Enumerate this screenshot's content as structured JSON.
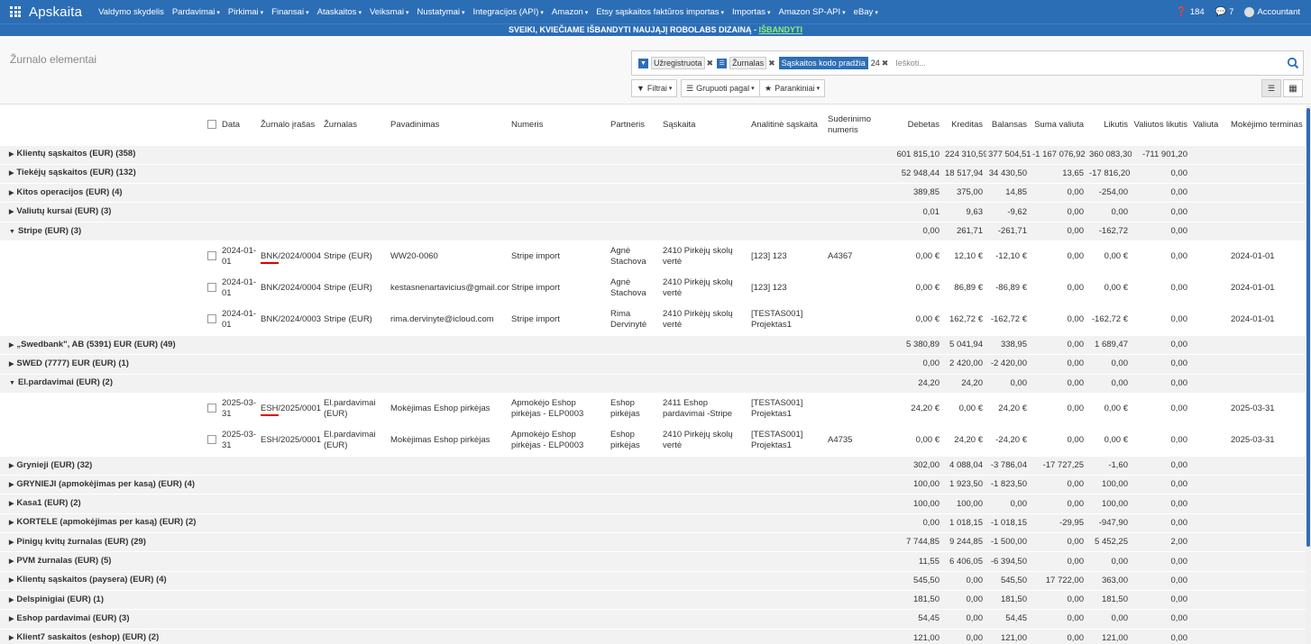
{
  "navbar": {
    "brand": "Apskaita",
    "menu": [
      "Valdymo skydelis",
      "Pardavimai",
      "Pirkimai",
      "Finansai",
      "Ataskaitos",
      "Veiksmai",
      "Nustatymai",
      "Integracijos (API)",
      "Amazon",
      "Etsy sąskaitos faktūros importas",
      "Importas",
      "Amazon SP-API",
      "eBay"
    ],
    "menu_has_caret": [
      false,
      true,
      true,
      true,
      true,
      true,
      true,
      true,
      true,
      true,
      true,
      true,
      true
    ],
    "help_count": "184",
    "messages_count": "7",
    "user": "Accountant"
  },
  "banner": {
    "text": "SVEIKI, KVIEČIAME IŠBANDYTI NAUJĄJĮ ROBOLABS DIZAINĄ - ",
    "link": "IŠBANDYTI"
  },
  "control": {
    "title": "Žurnalo elementai",
    "facets": [
      {
        "icon": "filter-icon",
        "value": "Užregistruota",
        "highlight": false,
        "extra": ""
      },
      {
        "icon": "list-icon",
        "value": "Žurnalas",
        "highlight": false,
        "extra": ""
      },
      {
        "icon": "",
        "value": "Sąskaitos kodo pradžia",
        "highlight": true,
        "extra": "24"
      }
    ],
    "search_placeholder": "Ieškoti...",
    "filters_label": "Filtrai",
    "group_label": "Grupuoti pagal",
    "favorites_label": "Parankiniai"
  },
  "table": {
    "headers": [
      "Data",
      "Žurnalo įrašas",
      "Žurnalas",
      "Pavadinimas",
      "Numeris",
      "Partneris",
      "Sąskaita",
      "Analitinė sąskaita",
      "Suderinimo numeris",
      "Debetas",
      "Kreditas",
      "Balansas",
      "Suma valiuta",
      "Likutis",
      "Valiutos likutis",
      "Valiuta",
      "Mokėjimo terminas"
    ],
    "rows": [
      {
        "type": "group",
        "open": false,
        "name": "Klientų sąskaitos (EUR) (358)",
        "debit": "601 815,10",
        "credit": "224 310,59",
        "balance": "377 504,51",
        "amount_cur": "-1 167 076,92",
        "residual": "360 083,30",
        "cur_residual": "-711 901,20"
      },
      {
        "type": "group",
        "open": false,
        "name": "Tiekėjų sąskaitos (EUR) (132)",
        "debit": "52 948,44",
        "credit": "18 517,94",
        "balance": "34 430,50",
        "amount_cur": "13,65",
        "residual": "-17 816,20",
        "cur_residual": "0,00"
      },
      {
        "type": "group",
        "open": false,
        "name": "Kitos operacijos (EUR) (4)",
        "debit": "389,85",
        "credit": "375,00",
        "balance": "14,85",
        "amount_cur": "0,00",
        "residual": "-254,00",
        "cur_residual": "0,00"
      },
      {
        "type": "group",
        "open": false,
        "name": "Valiutų kursai (EUR) (3)",
        "debit": "0,01",
        "credit": "9,63",
        "balance": "-9,62",
        "amount_cur": "0,00",
        "residual": "0,00",
        "cur_residual": "0,00"
      },
      {
        "type": "group",
        "open": true,
        "name": "Stripe (EUR) (3)",
        "debit": "0,00",
        "credit": "261,71",
        "balance": "-261,71",
        "amount_cur": "0,00",
        "residual": "-162,72",
        "cur_residual": "0,00"
      },
      {
        "type": "rec",
        "date": "2024-01-01",
        "entry": "BNK/2024/0004",
        "entry_underline": true,
        "journal": "Stripe (EUR)",
        "label": "WW20-0060",
        "ref": "Stripe import",
        "partner": "Agnė Stachova",
        "account": "2410 Pirkėjų skolų vertė",
        "analytic": "[123] 123",
        "reconcile": "A4367",
        "debit": "0,00 €",
        "credit": "12,10 €",
        "balance": "-12,10 €",
        "amount_cur": "0,00",
        "residual": "0,00 €",
        "cur_residual": "0,00",
        "currency": "",
        "due": "2024-01-01"
      },
      {
        "type": "rec",
        "date": "2024-01-01",
        "entry": "BNK/2024/0004",
        "entry_underline": false,
        "journal": "Stripe (EUR)",
        "label": "kestasnenartavicius@gmail.com",
        "ref": "Stripe import",
        "partner": "Agnė Stachova",
        "account": "2410 Pirkėjų skolų vertė",
        "analytic": "[123] 123",
        "reconcile": "",
        "debit": "0,00 €",
        "credit": "86,89 €",
        "balance": "-86,89 €",
        "amount_cur": "0,00",
        "residual": "0,00 €",
        "cur_residual": "0,00",
        "currency": "",
        "due": "2024-01-01"
      },
      {
        "type": "rec",
        "date": "2024-01-01",
        "entry": "BNK/2024/0003",
        "entry_underline": false,
        "journal": "Stripe (EUR)",
        "label": "rima.dervinyte@icloud.com",
        "ref": "Stripe import",
        "partner": "Rima Dervinytė",
        "account": "2410 Pirkėjų skolų vertė",
        "analytic": "[TESTAS001] Projektas1",
        "reconcile": "",
        "debit": "0,00 €",
        "credit": "162,72 €",
        "balance": "-162,72 €",
        "amount_cur": "0,00",
        "residual": "-162,72 €",
        "cur_residual": "0,00",
        "currency": "",
        "due": "2024-01-01"
      },
      {
        "type": "group",
        "open": false,
        "name": "„Swedbank\", AB (5391) EUR (EUR) (49)",
        "debit": "5 380,89",
        "credit": "5 041,94",
        "balance": "338,95",
        "amount_cur": "0,00",
        "residual": "1 689,47",
        "cur_residual": "0,00"
      },
      {
        "type": "group",
        "open": false,
        "name": "SWED (7777) EUR (EUR) (1)",
        "debit": "0,00",
        "credit": "2 420,00",
        "balance": "-2 420,00",
        "amount_cur": "0,00",
        "residual": "0,00",
        "cur_residual": "0,00"
      },
      {
        "type": "group",
        "open": true,
        "name": "El.pardavimai (EUR) (2)",
        "debit": "24,20",
        "credit": "24,20",
        "balance": "0,00",
        "amount_cur": "0,00",
        "residual": "0,00",
        "cur_residual": "0,00"
      },
      {
        "type": "rec",
        "date": "2025-03-31",
        "entry": "ESH/2025/0001",
        "entry_underline": true,
        "journal": "El.pardavimai (EUR)",
        "label": "Mokėjimas Eshop pirkėjas",
        "ref": "Apmokėjo Eshop pirkėjas - ELP0003",
        "partner": "Eshop pirkėjas",
        "account": "2411 Eshop pardavimai -Stripe",
        "analytic": "[TESTAS001] Projektas1",
        "reconcile": "",
        "debit": "24,20 €",
        "credit": "0,00 €",
        "balance": "24,20 €",
        "amount_cur": "0,00",
        "residual": "0,00 €",
        "cur_residual": "0,00",
        "currency": "",
        "due": "2025-03-31"
      },
      {
        "type": "rec",
        "date": "2025-03-31",
        "entry": "ESH/2025/0001",
        "entry_underline": false,
        "journal": "El.pardavimai (EUR)",
        "label": "Mokėjimas Eshop pirkėjas",
        "ref": "Apmokėjo Eshop pirkėjas - ELP0003",
        "partner": "Eshop pirkėjas",
        "account": "2410 Pirkėjų skolų vertė",
        "analytic": "[TESTAS001] Projektas1",
        "reconcile": "A4735",
        "debit": "0,00 €",
        "credit": "24,20 €",
        "balance": "-24,20 €",
        "amount_cur": "0,00",
        "residual": "0,00 €",
        "cur_residual": "0,00",
        "currency": "",
        "due": "2025-03-31"
      },
      {
        "type": "group",
        "open": false,
        "name": "Grynieji (EUR) (32)",
        "debit": "302,00",
        "credit": "4 088,04",
        "balance": "-3 786,04",
        "amount_cur": "-17 727,25",
        "residual": "-1,60",
        "cur_residual": "0,00"
      },
      {
        "type": "group",
        "open": false,
        "name": "GRYNIEJI (apmokėjimas per kasą) (EUR) (4)",
        "debit": "100,00",
        "credit": "1 923,50",
        "balance": "-1 823,50",
        "amount_cur": "0,00",
        "residual": "100,00",
        "cur_residual": "0,00"
      },
      {
        "type": "group",
        "open": false,
        "name": "Kasa1 (EUR) (2)",
        "debit": "100,00",
        "credit": "100,00",
        "balance": "0,00",
        "amount_cur": "0,00",
        "residual": "100,00",
        "cur_residual": "0,00"
      },
      {
        "type": "group",
        "open": false,
        "name": "KORTELE (apmokėjimas per kasą) (EUR) (2)",
        "debit": "0,00",
        "credit": "1 018,15",
        "balance": "-1 018,15",
        "amount_cur": "-29,95",
        "residual": "-947,90",
        "cur_residual": "0,00"
      },
      {
        "type": "group",
        "open": false,
        "name": "Pinigų kvitų žurnalas (EUR) (29)",
        "debit": "7 744,85",
        "credit": "9 244,85",
        "balance": "-1 500,00",
        "amount_cur": "0,00",
        "residual": "5 452,25",
        "cur_residual": "2,00"
      },
      {
        "type": "group",
        "open": false,
        "name": "PVM žurnalas (EUR) (5)",
        "debit": "11,55",
        "credit": "6 406,05",
        "balance": "-6 394,50",
        "amount_cur": "0,00",
        "residual": "0,00",
        "cur_residual": "0,00"
      },
      {
        "type": "group",
        "open": false,
        "name": "Klientų sąskaitos (paysera) (EUR) (4)",
        "debit": "545,50",
        "credit": "0,00",
        "balance": "545,50",
        "amount_cur": "17 722,00",
        "residual": "363,00",
        "cur_residual": "0,00"
      },
      {
        "type": "group",
        "open": false,
        "name": "Delspinigiai (EUR) (1)",
        "debit": "181,50",
        "credit": "0,00",
        "balance": "181,50",
        "amount_cur": "0,00",
        "residual": "181,50",
        "cur_residual": "0,00"
      },
      {
        "type": "group",
        "open": false,
        "name": "Eshop pardavimai (EUR) (3)",
        "debit": "54,45",
        "credit": "0,00",
        "balance": "54,45",
        "amount_cur": "0,00",
        "residual": "0,00",
        "cur_residual": "0,00"
      },
      {
        "type": "group",
        "open": false,
        "name": "Klient7 saskaitos (eshop) (EUR) (2)",
        "debit": "121,00",
        "credit": "0,00",
        "balance": "121,00",
        "amount_cur": "0,00",
        "residual": "121,00",
        "cur_residual": "0,00"
      }
    ]
  }
}
